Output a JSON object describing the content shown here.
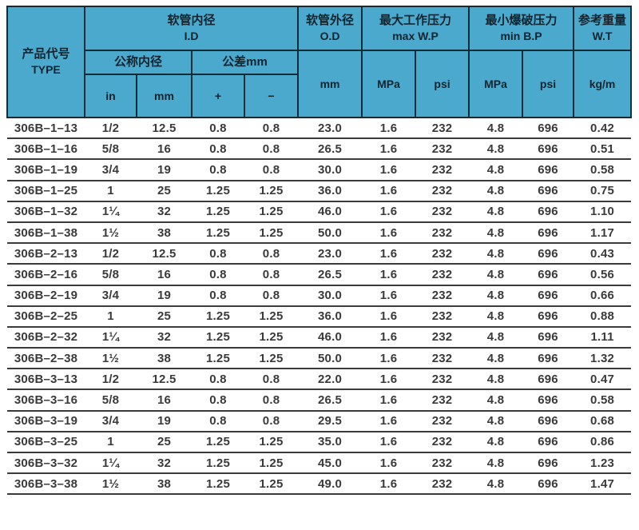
{
  "table": {
    "header": {
      "type_zh": "产品代号",
      "type_en": "TYPE",
      "id_zh": "软管内径",
      "id_en": "I.D",
      "nominal_zh": "公称内径",
      "tolerance_zh": "公差mm",
      "unit_in": "in",
      "unit_mm": "mm",
      "plus": "+",
      "minus": "−",
      "od_zh": "软管外径",
      "od_en": "O.D",
      "od_unit": "mm",
      "wp_zh": "最大工作压力",
      "wp_en": "max W.P",
      "wp_mpa": "MPa",
      "wp_psi": "psi",
      "bp_zh": "最小爆破压力",
      "bp_en": "min B.P",
      "bp_mpa": "MPa",
      "bp_psi": "psi",
      "wt_zh": "参考重量",
      "wt_en": "W.T",
      "wt_unit": "kg/m"
    },
    "column_keys": [
      "type",
      "in",
      "mm",
      "plus",
      "minus",
      "od-mm",
      "wp-mpa",
      "wp-psi",
      "bp-mpa",
      "bp-psi",
      "kg-per-m"
    ],
    "rows": [
      [
        "306B–1–13",
        "1/2",
        "12.5",
        "0.8",
        "0.8",
        "23.0",
        "1.6",
        "232",
        "4.8",
        "696",
        "0.42"
      ],
      [
        "306B–1–16",
        "5/8",
        "16",
        "0.8",
        "0.8",
        "26.5",
        "1.6",
        "232",
        "4.8",
        "696",
        "0.51"
      ],
      [
        "306B–1–19",
        "3/4",
        "19",
        "0.8",
        "0.8",
        "30.0",
        "1.6",
        "232",
        "4.8",
        "696",
        "0.58"
      ],
      [
        "306B–1–25",
        "1",
        "25",
        "1.25",
        "1.25",
        "36.0",
        "1.6",
        "232",
        "4.8",
        "696",
        "0.75"
      ],
      [
        "306B–1–32",
        "1¼",
        "32",
        "1.25",
        "1.25",
        "46.0",
        "1.6",
        "232",
        "4.8",
        "696",
        "1.10"
      ],
      [
        "306B–1–38",
        "1½",
        "38",
        "1.25",
        "1.25",
        "50.0",
        "1.6",
        "232",
        "4.8",
        "696",
        "1.17"
      ],
      [
        "306B–2–13",
        "1/2",
        "12.5",
        "0.8",
        "0.8",
        "23.0",
        "1.6",
        "232",
        "4.8",
        "696",
        "0.43"
      ],
      [
        "306B–2–16",
        "5/8",
        "16",
        "0.8",
        "0.8",
        "26.5",
        "1.6",
        "232",
        "4.8",
        "696",
        "0.56"
      ],
      [
        "306B–2–19",
        "3/4",
        "19",
        "0.8",
        "0.8",
        "30.0",
        "1.6",
        "232",
        "4.8",
        "696",
        "0.66"
      ],
      [
        "306B–2–25",
        "1",
        "25",
        "1.25",
        "1.25",
        "36.0",
        "1.6",
        "232",
        "4.8",
        "696",
        "0.88"
      ],
      [
        "306B–2–32",
        "1¼",
        "32",
        "1.25",
        "1.25",
        "46.0",
        "1.6",
        "232",
        "4.8",
        "696",
        "1.11"
      ],
      [
        "306B–2–38",
        "1½",
        "38",
        "1.25",
        "1.25",
        "50.0",
        "1.6",
        "232",
        "4.8",
        "696",
        "1.32"
      ],
      [
        "306B–3–13",
        "1/2",
        "12.5",
        "0.8",
        "0.8",
        "22.0",
        "1.6",
        "232",
        "4.8",
        "696",
        "0.47"
      ],
      [
        "306B–3–16",
        "5/8",
        "16",
        "0.8",
        "0.8",
        "26.5",
        "1.6",
        "232",
        "4.8",
        "696",
        "0.58"
      ],
      [
        "306B–3–19",
        "3/4",
        "19",
        "0.8",
        "0.8",
        "29.5",
        "1.6",
        "232",
        "4.8",
        "696",
        "0.68"
      ],
      [
        "306B–3–25",
        "1",
        "25",
        "1.25",
        "1.25",
        "35.0",
        "1.6",
        "232",
        "4.8",
        "696",
        "0.86"
      ],
      [
        "306B–3–32",
        "1¼",
        "32",
        "1.25",
        "1.25",
        "45.0",
        "1.6",
        "232",
        "4.8",
        "696",
        "1.23"
      ],
      [
        "306B–3–38",
        "1½",
        "38",
        "1.25",
        "1.25",
        "49.0",
        "1.6",
        "232",
        "4.8",
        "696",
        "1.47"
      ]
    ]
  },
  "colors": {
    "header_bg": "#4aa9cd",
    "border_dark": "#132c36",
    "header_text": "#13242e",
    "data_text": "#3a3a3a",
    "row_line": "#3b3b3b"
  }
}
